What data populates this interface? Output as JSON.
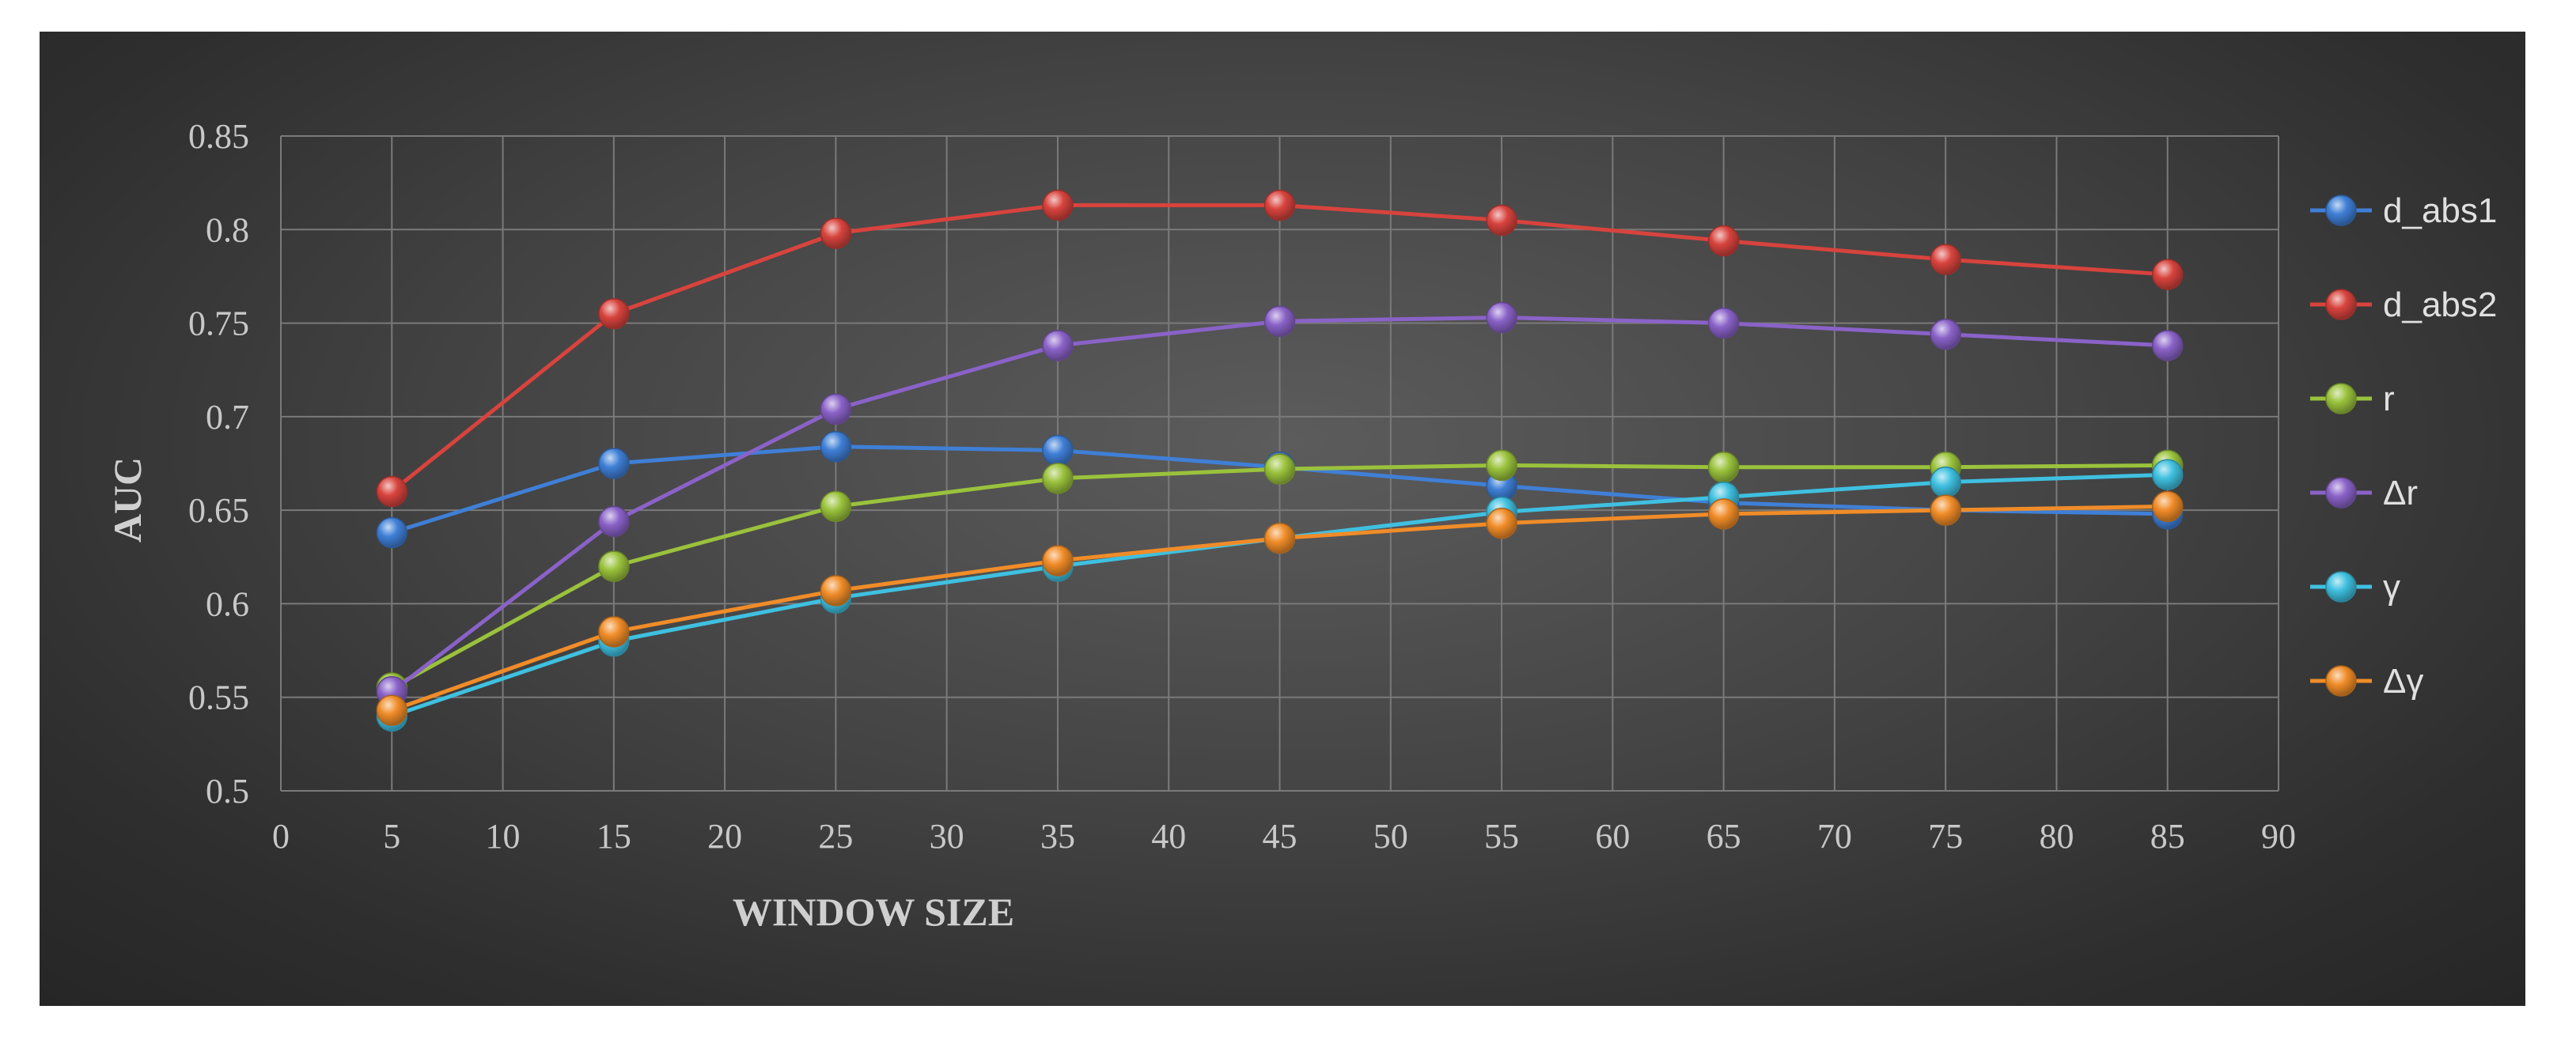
{
  "chart_data": {
    "type": "line",
    "title": "",
    "xlabel": "WINDOW SIZE",
    "ylabel": "AUC",
    "xlim": [
      0,
      90
    ],
    "ylim": [
      0.5,
      0.85
    ],
    "x_ticks": [
      "0",
      "5",
      "10",
      "15",
      "20",
      "25",
      "30",
      "35",
      "40",
      "45",
      "50",
      "55",
      "60",
      "65",
      "70",
      "75",
      "80",
      "85",
      "90"
    ],
    "y_ticks": [
      "0.5",
      "0.55",
      "0.6",
      "0.65",
      "0.7",
      "0.75",
      "0.8",
      "0.85"
    ],
    "grid": true,
    "legend_position": "right",
    "x": [
      5,
      15,
      25,
      35,
      45,
      55,
      65,
      75,
      85
    ],
    "series": [
      {
        "name": "d_abs1",
        "color": "#3f7fd6",
        "values": [
          0.638,
          0.675,
          0.684,
          0.682,
          0.673,
          0.663,
          0.654,
          0.65,
          0.648
        ]
      },
      {
        "name": "d_abs2",
        "color": "#d8433d",
        "values": [
          0.66,
          0.755,
          0.798,
          0.813,
          0.813,
          0.805,
          0.794,
          0.784,
          0.776
        ]
      },
      {
        "name": "r",
        "color": "#9ac23c",
        "values": [
          0.555,
          0.62,
          0.652,
          0.667,
          0.672,
          0.674,
          0.673,
          0.673,
          0.674
        ]
      },
      {
        "name": "Δr",
        "color": "#8a62c8",
        "values": [
          0.553,
          0.644,
          0.704,
          0.738,
          0.751,
          0.753,
          0.75,
          0.744,
          0.738
        ]
      },
      {
        "name": "γ",
        "color": "#3fc0e0",
        "values": [
          0.54,
          0.58,
          0.603,
          0.62,
          0.635,
          0.649,
          0.657,
          0.665,
          0.669
        ]
      },
      {
        "name": "Δγ",
        "color": "#f08c28",
        "values": [
          0.543,
          0.585,
          0.607,
          0.623,
          0.635,
          0.643,
          0.648,
          0.65,
          0.652
        ]
      }
    ]
  }
}
